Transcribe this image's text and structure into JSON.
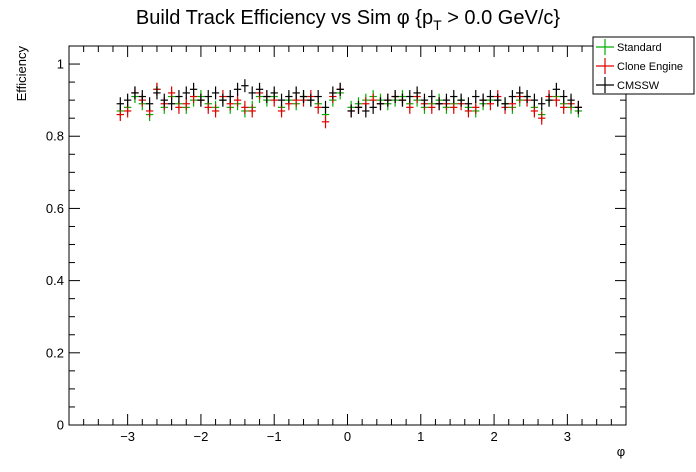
{
  "chart_data": {
    "type": "scatter",
    "title": {
      "main": "Build Track Efficiency vs Sim ",
      "phi": "φ",
      "brace_open": " {p",
      "subscript": "T",
      "rest": " > 0.0 GeV/c}"
    },
    "xlabel": "φ",
    "ylabel": "Efficiency",
    "xlim": [
      -3.8,
      3.8
    ],
    "ylim": [
      0,
      1.05
    ],
    "x_ticks": [
      {
        "value": -3,
        "label": "−3"
      },
      {
        "value": -2,
        "label": "−2"
      },
      {
        "value": -1,
        "label": "−1"
      },
      {
        "value": 0,
        "label": "0"
      },
      {
        "value": 1,
        "label": "1"
      },
      {
        "value": 2,
        "label": "2"
      },
      {
        "value": 3,
        "label": "3"
      }
    ],
    "y_ticks": [
      {
        "value": 0,
        "label": "0"
      },
      {
        "value": 0.2,
        "label": "0.2"
      },
      {
        "value": 0.4,
        "label": "0.4"
      },
      {
        "value": 0.6,
        "label": "0.6"
      },
      {
        "value": 0.8,
        "label": "0.8"
      },
      {
        "value": 1,
        "label": "1"
      }
    ],
    "grid": false,
    "legend_position": "top-right",
    "x": [
      -3.1,
      -3.0,
      -2.9,
      -2.8,
      -2.7,
      -2.6,
      -2.5,
      -2.4,
      -2.3,
      -2.2,
      -2.1,
      -2.0,
      -1.9,
      -1.8,
      -1.7,
      -1.6,
      -1.5,
      -1.4,
      -1.3,
      -1.2,
      -1.1,
      -1.0,
      -0.9,
      -0.8,
      -0.7,
      -0.6,
      -0.5,
      -0.4,
      -0.3,
      -0.2,
      -0.1,
      0.05,
      0.15,
      0.25,
      0.35,
      0.45,
      0.55,
      0.65,
      0.75,
      0.85,
      0.95,
      1.05,
      1.15,
      1.25,
      1.35,
      1.45,
      1.55,
      1.65,
      1.75,
      1.85,
      1.95,
      2.05,
      2.15,
      2.25,
      2.35,
      2.45,
      2.55,
      2.65,
      2.75,
      2.85,
      2.95,
      3.05,
      3.15
    ],
    "x_error": 0.05,
    "y_error": 0.018,
    "series": [
      {
        "name": "Standard",
        "color": "#00b000",
        "values": [
          0.87,
          0.88,
          0.91,
          0.89,
          0.86,
          0.93,
          0.88,
          0.91,
          0.89,
          0.88,
          0.9,
          0.91,
          0.89,
          0.88,
          0.9,
          0.88,
          0.89,
          0.87,
          0.88,
          0.91,
          0.9,
          0.91,
          0.88,
          0.9,
          0.89,
          0.91,
          0.9,
          0.89,
          0.86,
          0.9,
          0.92,
          0.88,
          0.89,
          0.9,
          0.91,
          0.9,
          0.89,
          0.9,
          0.91,
          0.89,
          0.9,
          0.88,
          0.89,
          0.9,
          0.88,
          0.89,
          0.9,
          0.88,
          0.87,
          0.89,
          0.9,
          0.9,
          0.89,
          0.88,
          0.9,
          0.91,
          0.88,
          0.86,
          0.9,
          0.91,
          0.89,
          0.88,
          0.87
        ]
      },
      {
        "name": "Clone Engine",
        "color": "#e00000",
        "values": [
          0.86,
          0.87,
          0.92,
          0.9,
          0.87,
          0.93,
          0.89,
          0.92,
          0.88,
          0.89,
          0.91,
          0.9,
          0.88,
          0.87,
          0.91,
          0.89,
          0.9,
          0.88,
          0.87,
          0.92,
          0.91,
          0.9,
          0.87,
          0.89,
          0.9,
          0.9,
          0.91,
          0.88,
          0.84,
          0.91,
          0.93,
          0.87,
          0.88,
          0.89,
          0.9,
          0.89,
          0.9,
          0.91,
          0.9,
          0.88,
          0.91,
          0.89,
          0.88,
          0.89,
          0.89,
          0.88,
          0.89,
          0.87,
          0.88,
          0.9,
          0.89,
          0.91,
          0.88,
          0.89,
          0.91,
          0.9,
          0.87,
          0.85,
          0.91,
          0.9,
          0.88,
          0.89,
          0.88
        ]
      },
      {
        "name": "CMSSW",
        "color": "#000000",
        "values": [
          0.89,
          0.9,
          0.92,
          0.91,
          0.89,
          0.92,
          0.9,
          0.89,
          0.91,
          0.92,
          0.93,
          0.9,
          0.91,
          0.92,
          0.9,
          0.91,
          0.93,
          0.94,
          0.92,
          0.93,
          0.91,
          0.92,
          0.9,
          0.91,
          0.92,
          0.91,
          0.9,
          0.91,
          0.88,
          0.92,
          0.93,
          0.87,
          0.88,
          0.87,
          0.88,
          0.89,
          0.9,
          0.91,
          0.9,
          0.91,
          0.92,
          0.9,
          0.91,
          0.89,
          0.9,
          0.91,
          0.9,
          0.89,
          0.91,
          0.9,
          0.91,
          0.9,
          0.89,
          0.91,
          0.92,
          0.91,
          0.9,
          0.89,
          0.9,
          0.93,
          0.91,
          0.9,
          0.88
        ]
      }
    ]
  }
}
